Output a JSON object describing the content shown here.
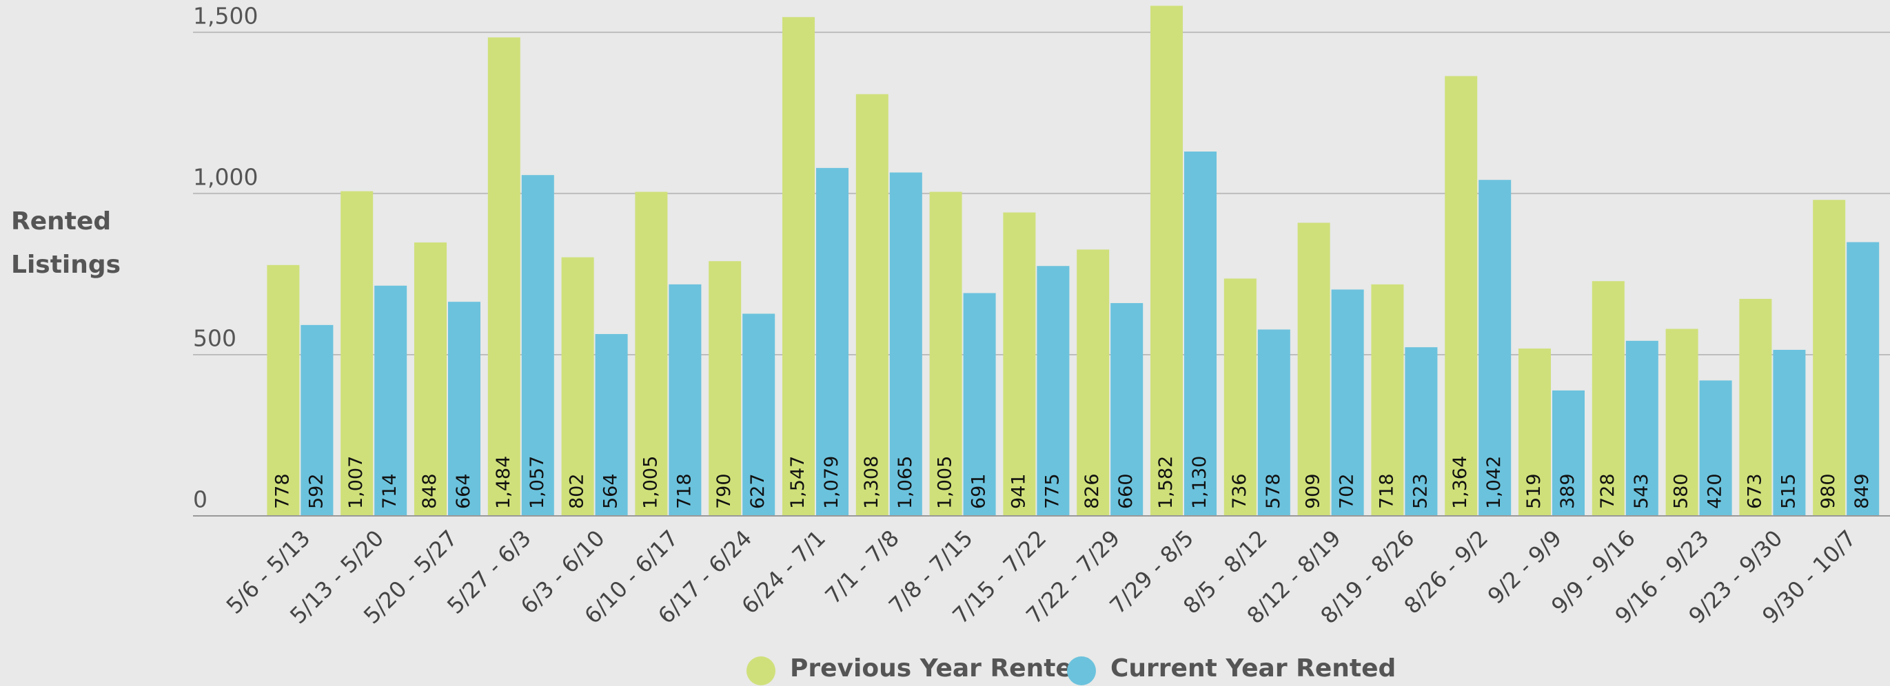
{
  "chart_data": {
    "type": "bar",
    "y_label": "Rented Listings",
    "categories": [
      "5/6 - 5/13",
      "5/13 - 5/20",
      "5/20 - 5/27",
      "5/27 - 6/3",
      "6/3 - 6/10",
      "6/10 - 6/17",
      "6/17 - 6/24",
      "6/24 - 7/1",
      "7/1 - 7/8",
      "7/8 - 7/15",
      "7/15 - 7/22",
      "7/22 - 7/29",
      "7/29 - 8/5",
      "8/5 - 8/12",
      "8/12 - 8/19",
      "8/19 - 8/26",
      "8/26 - 9/2",
      "9/2 - 9/9",
      "9/9 - 9/16",
      "9/16 - 9/23",
      "9/23 - 9/30",
      "9/30 - 10/7"
    ],
    "series": [
      {
        "name": "Previous Year Rented",
        "color": "#cfe07a",
        "values": [
          778,
          1007,
          848,
          1484,
          802,
          1005,
          790,
          1547,
          1308,
          1005,
          941,
          826,
          1582,
          736,
          909,
          718,
          1364,
          519,
          728,
          580,
          673,
          980
        ],
        "value_labels": [
          "778",
          "1,007",
          "848",
          "1,484",
          "802",
          "1,005",
          "790",
          "1,547",
          "1,308",
          "1,005",
          "941",
          "826",
          "1,582",
          "736",
          "909",
          "718",
          "1,364",
          "519",
          "728",
          "580",
          "673",
          "980"
        ]
      },
      {
        "name": "Current Year Rented",
        "color": "#6bc2dd",
        "values": [
          592,
          714,
          664,
          1057,
          564,
          718,
          627,
          1079,
          1065,
          691,
          775,
          660,
          1130,
          578,
          702,
          523,
          1042,
          389,
          543,
          420,
          515,
          849
        ],
        "value_labels": [
          "592",
          "714",
          "664",
          "1,057",
          "564",
          "718",
          "627",
          "1,079",
          "1,065",
          "691",
          "775",
          "660",
          "1,130",
          "578",
          "702",
          "523",
          "1,042",
          "389",
          "543",
          "420",
          "515",
          "849"
        ]
      }
    ],
    "ylim": [
      0,
      1600
    ],
    "yticks": [
      0,
      500,
      {
        "value": 1000,
        "label": "1,000"
      },
      {
        "value": 1500,
        "label": "1,500"
      }
    ],
    "grid": true,
    "legend": "bottom"
  }
}
